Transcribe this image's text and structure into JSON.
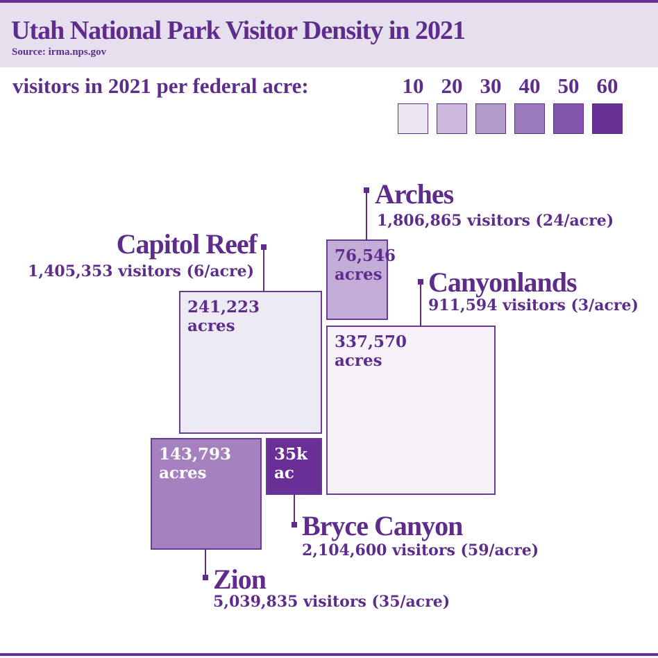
{
  "header": {
    "title": "Utah National Park Visitor Density in 2021",
    "source": "Source: irma.nps.gov"
  },
  "legend": {
    "title": "visitors in 2021 per federal acre:",
    "steps": [
      {
        "label": "10",
        "color": "#ece6f2"
      },
      {
        "label": "20",
        "color": "#cbb8dc"
      },
      {
        "label": "30",
        "color": "#b39bcc"
      },
      {
        "label": "40",
        "color": "#9c7bbd"
      },
      {
        "label": "50",
        "color": "#8354ab"
      },
      {
        "label": "60",
        "color": "#682f95"
      }
    ]
  },
  "chart_data": {
    "type": "proportional-area",
    "title": "Utah National Park Visitor Density in 2021",
    "parks": [
      {
        "name": "Capitol Reef",
        "visitors_text": "1,405,353 visitors (6/acre)",
        "visitors": 1405353,
        "per_acre": 6,
        "acres_line1": "241,223",
        "acres_line2": "acres",
        "acres": 241223,
        "color": "#ecebf3"
      },
      {
        "name": "Arches",
        "visitors_text": "1,806,865 visitors (24/acre)",
        "visitors": 1806865,
        "per_acre": 24,
        "acres_line1": "76,546",
        "acres_line2": "acres",
        "acres": 76546,
        "color": "#c3acd6"
      },
      {
        "name": "Canyonlands",
        "visitors_text": "911,594 visitors (3/acre)",
        "visitors": 911594,
        "per_acre": 3,
        "acres_line1": "337,570",
        "acres_line2": "acres",
        "acres": 337570,
        "color": "#f6f2f8"
      },
      {
        "name": "Zion",
        "visitors_text": "5,039,835 visitors (35/acre)",
        "visitors": 5039835,
        "per_acre": 35,
        "acres_line1": "143,793",
        "acres_line2": "acres",
        "acres": 143793,
        "color": "#a582bf"
      },
      {
        "name": "Bryce Canyon",
        "visitors_text": "2,104,600 visitors (59/acre)",
        "visitors": 2104600,
        "per_acre": 59,
        "acres_line1": "35k",
        "acres_line2": "ac",
        "acres": 35000,
        "color": "#692f96"
      }
    ]
  }
}
